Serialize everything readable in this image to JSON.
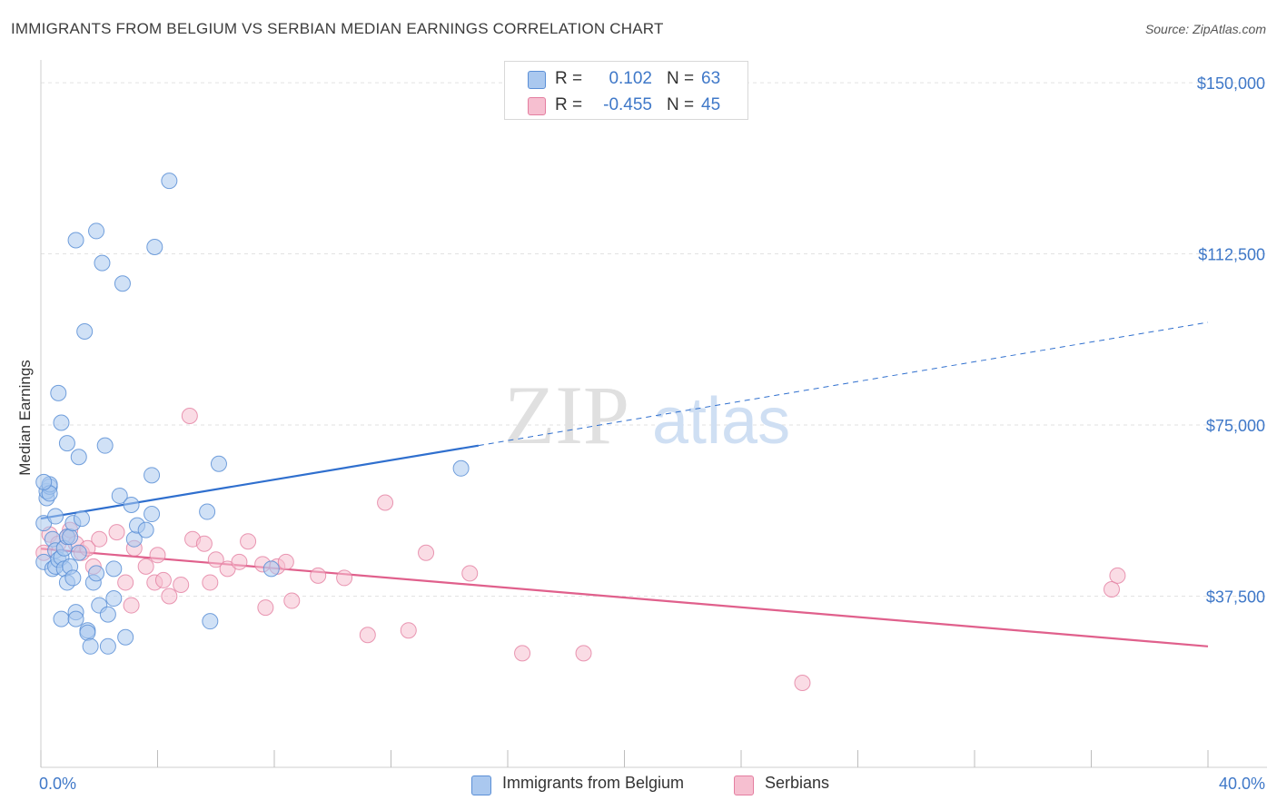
{
  "header": {
    "title": "IMMIGRANTS FROM BELGIUM VS SERBIAN MEDIAN EARNINGS CORRELATION CHART",
    "source": "Source: ZipAtlas.com"
  },
  "watermark": {
    "zip": "ZIP",
    "atlas": "atlas"
  },
  "legend_top": {
    "rows": [
      {
        "r_label": "R =",
        "r_value": "0.102",
        "n_label": "N =",
        "n_value": "63"
      },
      {
        "r_label": "R =",
        "r_value": "-0.455",
        "n_label": "N =",
        "n_value": "45"
      }
    ]
  },
  "bottom_legend": {
    "belgium": "Immigrants from Belgium",
    "serbians": "Serbians"
  },
  "colors": {
    "belgium_fill": "#aac8ef",
    "belgium_stroke": "#5b8fd6",
    "belgium_line": "#2f6fce",
    "serbian_fill": "#f6bfd0",
    "serbian_stroke": "#e47ea0",
    "serbian_line": "#e0608c",
    "axis_label": "#3f78c8"
  },
  "chart_data": {
    "type": "scatter",
    "title": "IMMIGRANTS FROM BELGIUM VS SERBIAN MEDIAN EARNINGS CORRELATION CHART",
    "xlabel": "",
    "ylabel": "Median Earnings",
    "x_tick_labels": [
      "0.0%",
      "40.0%"
    ],
    "y_tick_labels": [
      "$37,500",
      "$75,000",
      "$112,500",
      "$150,000"
    ],
    "y_ticks": [
      37500,
      75000,
      112500,
      150000
    ],
    "xlim": [
      0,
      40
    ],
    "ylim": [
      0,
      153000
    ],
    "grid": true,
    "legend_placement": "top-center",
    "series": [
      {
        "name": "Immigrants from Belgium",
        "color": "#5b8fd6",
        "r": 0.102,
        "n": 63,
        "trend": {
          "x": [
            0,
            15
          ],
          "y": [
            54500,
            70500
          ],
          "dashed_extension": {
            "x": [
              15,
              40
            ],
            "y": [
              70500,
              97500
            ]
          }
        },
        "points": [
          [
            0.1,
            45000
          ],
          [
            0.1,
            53500
          ],
          [
            0.2,
            59000
          ],
          [
            0.2,
            60500
          ],
          [
            0.3,
            61500
          ],
          [
            0.3,
            62000
          ],
          [
            0.3,
            60000
          ],
          [
            0.4,
            50000
          ],
          [
            0.4,
            43500
          ],
          [
            0.5,
            55000
          ],
          [
            0.5,
            47500
          ],
          [
            0.5,
            44000
          ],
          [
            0.6,
            82000
          ],
          [
            0.6,
            45500
          ],
          [
            0.7,
            75500
          ],
          [
            0.7,
            32500
          ],
          [
            0.7,
            46000
          ],
          [
            0.8,
            48000
          ],
          [
            0.8,
            43500
          ],
          [
            0.9,
            40500
          ],
          [
            0.9,
            50500
          ],
          [
            0.9,
            71000
          ],
          [
            1.0,
            44000
          ],
          [
            1.0,
            50500
          ],
          [
            1.1,
            41500
          ],
          [
            1.1,
            53500
          ],
          [
            1.2,
            115500
          ],
          [
            1.2,
            34000
          ],
          [
            1.2,
            32500
          ],
          [
            1.3,
            68000
          ],
          [
            1.3,
            47000
          ],
          [
            1.4,
            54500
          ],
          [
            1.5,
            95500
          ],
          [
            1.6,
            30000
          ],
          [
            1.6,
            29500
          ],
          [
            1.7,
            26500
          ],
          [
            1.8,
            40500
          ],
          [
            1.9,
            117500
          ],
          [
            1.9,
            42500
          ],
          [
            2.0,
            35500
          ],
          [
            2.1,
            110500
          ],
          [
            2.2,
            70500
          ],
          [
            2.3,
            33500
          ],
          [
            2.3,
            26500
          ],
          [
            2.5,
            37000
          ],
          [
            2.5,
            43500
          ],
          [
            2.7,
            59500
          ],
          [
            2.8,
            106000
          ],
          [
            2.9,
            28500
          ],
          [
            3.1,
            57500
          ],
          [
            3.2,
            50000
          ],
          [
            3.3,
            53000
          ],
          [
            3.6,
            52000
          ],
          [
            3.8,
            64000
          ],
          [
            3.8,
            55500
          ],
          [
            3.9,
            114000
          ],
          [
            4.4,
            128500
          ],
          [
            5.7,
            56000
          ],
          [
            5.8,
            32000
          ],
          [
            6.1,
            66500
          ],
          [
            7.9,
            43500
          ],
          [
            14.4,
            65500
          ],
          [
            0.1,
            62500
          ]
        ]
      },
      {
        "name": "Serbians",
        "color": "#e47ea0",
        "r": -0.455,
        "n": 45,
        "trend": {
          "x": [
            0,
            40
          ],
          "y": [
            47900,
            26500
          ]
        },
        "points": [
          [
            0.1,
            47000
          ],
          [
            0.3,
            51000
          ],
          [
            0.6,
            49000
          ],
          [
            0.9,
            50500
          ],
          [
            1.0,
            52000
          ],
          [
            1.2,
            49000
          ],
          [
            1.4,
            47000
          ],
          [
            1.6,
            48000
          ],
          [
            1.8,
            44000
          ],
          [
            2.0,
            50000
          ],
          [
            2.6,
            51500
          ],
          [
            2.9,
            40500
          ],
          [
            3.1,
            35500
          ],
          [
            3.2,
            48000
          ],
          [
            3.6,
            44000
          ],
          [
            3.9,
            40500
          ],
          [
            4.0,
            46500
          ],
          [
            4.2,
            41000
          ],
          [
            4.4,
            37500
          ],
          [
            4.8,
            40000
          ],
          [
            5.1,
            77000
          ],
          [
            5.2,
            50000
          ],
          [
            5.6,
            49000
          ],
          [
            5.8,
            40500
          ],
          [
            6.0,
            45500
          ],
          [
            6.4,
            43500
          ],
          [
            6.8,
            45000
          ],
          [
            7.1,
            49500
          ],
          [
            7.6,
            44500
          ],
          [
            7.7,
            35000
          ],
          [
            8.1,
            44000
          ],
          [
            8.4,
            45000
          ],
          [
            8.6,
            36500
          ],
          [
            9.5,
            42000
          ],
          [
            10.4,
            41500
          ],
          [
            11.2,
            29000
          ],
          [
            11.8,
            58000
          ],
          [
            12.6,
            30000
          ],
          [
            13.2,
            47000
          ],
          [
            14.7,
            42500
          ],
          [
            16.5,
            25000
          ],
          [
            18.6,
            25000
          ],
          [
            26.1,
            18500
          ],
          [
            36.7,
            39000
          ],
          [
            36.9,
            42000
          ]
        ]
      }
    ]
  }
}
